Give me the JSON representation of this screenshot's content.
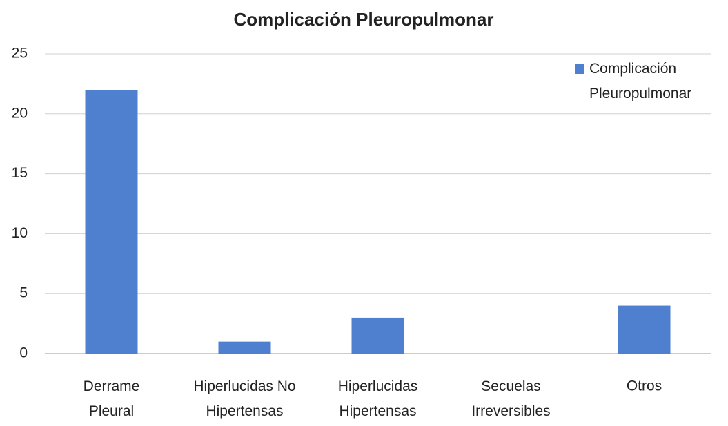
{
  "chart_data": {
    "type": "bar",
    "title": "Complicación Pleuropulmonar",
    "categories": [
      "Derrame Pleural",
      "Hiperlucidas No Hipertensas",
      "Hiperlucidas Hipertensas",
      "Secuelas Irreversibles",
      "Otros"
    ],
    "series": [
      {
        "name": "Complicación Pleuropulmonar",
        "color": "#4f7fcf",
        "values": [
          22,
          1,
          3,
          0,
          4
        ]
      }
    ],
    "ylim": [
      0,
      25
    ],
    "yticks": [
      0,
      5,
      10,
      15,
      20,
      25
    ],
    "grid": true,
    "legend": "top-right"
  }
}
